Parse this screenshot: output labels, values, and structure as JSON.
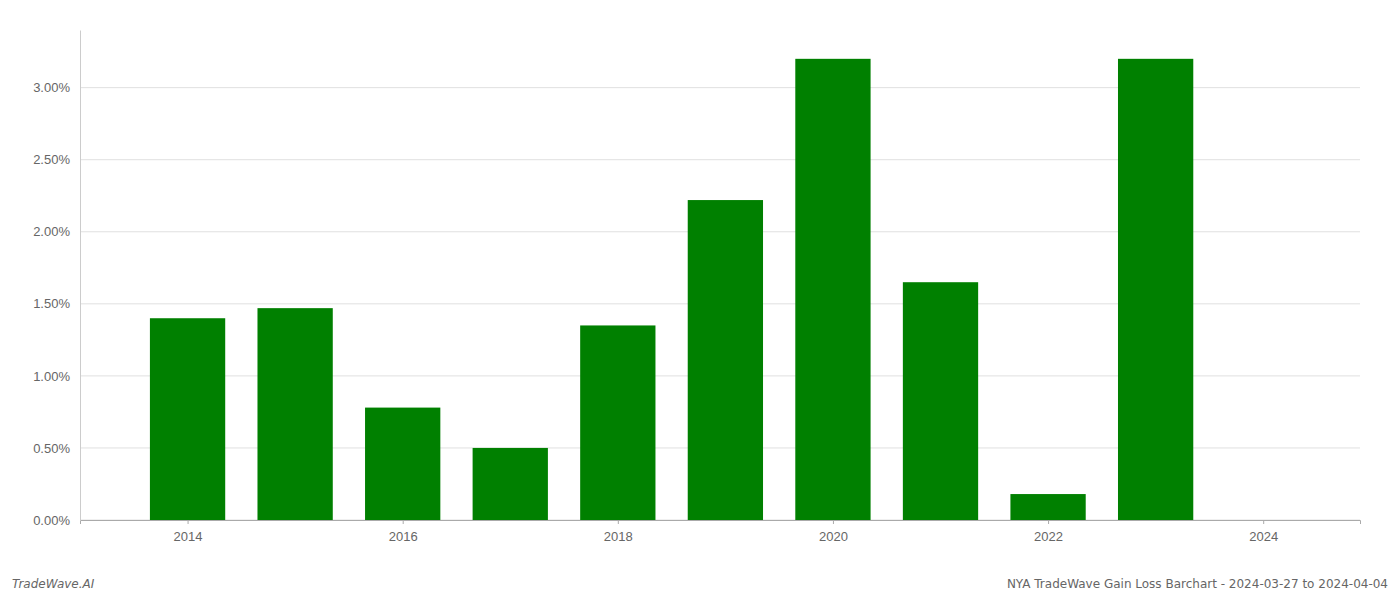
{
  "chart_data": {
    "type": "bar",
    "x": [
      2014,
      2015,
      2016,
      2017,
      2018,
      2019,
      2020,
      2021,
      2022,
      2023
    ],
    "values": [
      0.014,
      0.0147,
      0.0078,
      0.005,
      0.0135,
      0.0222,
      0.032,
      0.0165,
      0.0018,
      0.032
    ],
    "color": "#008000",
    "xlim": [
      2013.0,
      2024.9
    ],
    "xticks": [
      2014,
      2016,
      2018,
      2020,
      2022,
      2024
    ],
    "ylim": [
      0,
      0.034
    ],
    "yticks": [
      {
        "value": 0.0,
        "label": "0.00%"
      },
      {
        "value": 0.005,
        "label": "0.50%"
      },
      {
        "value": 0.01,
        "label": "1.00%"
      },
      {
        "value": 0.015,
        "label": "1.50%"
      },
      {
        "value": 0.02,
        "label": "2.00%"
      },
      {
        "value": 0.025,
        "label": "2.50%"
      },
      {
        "value": 0.03,
        "label": "3.00%"
      }
    ],
    "grid": true,
    "annotations": [
      "TradeWave.AI",
      "NYA TradeWave Gain Loss Barchart - 2024-03-27 to 2024-04-04"
    ]
  }
}
